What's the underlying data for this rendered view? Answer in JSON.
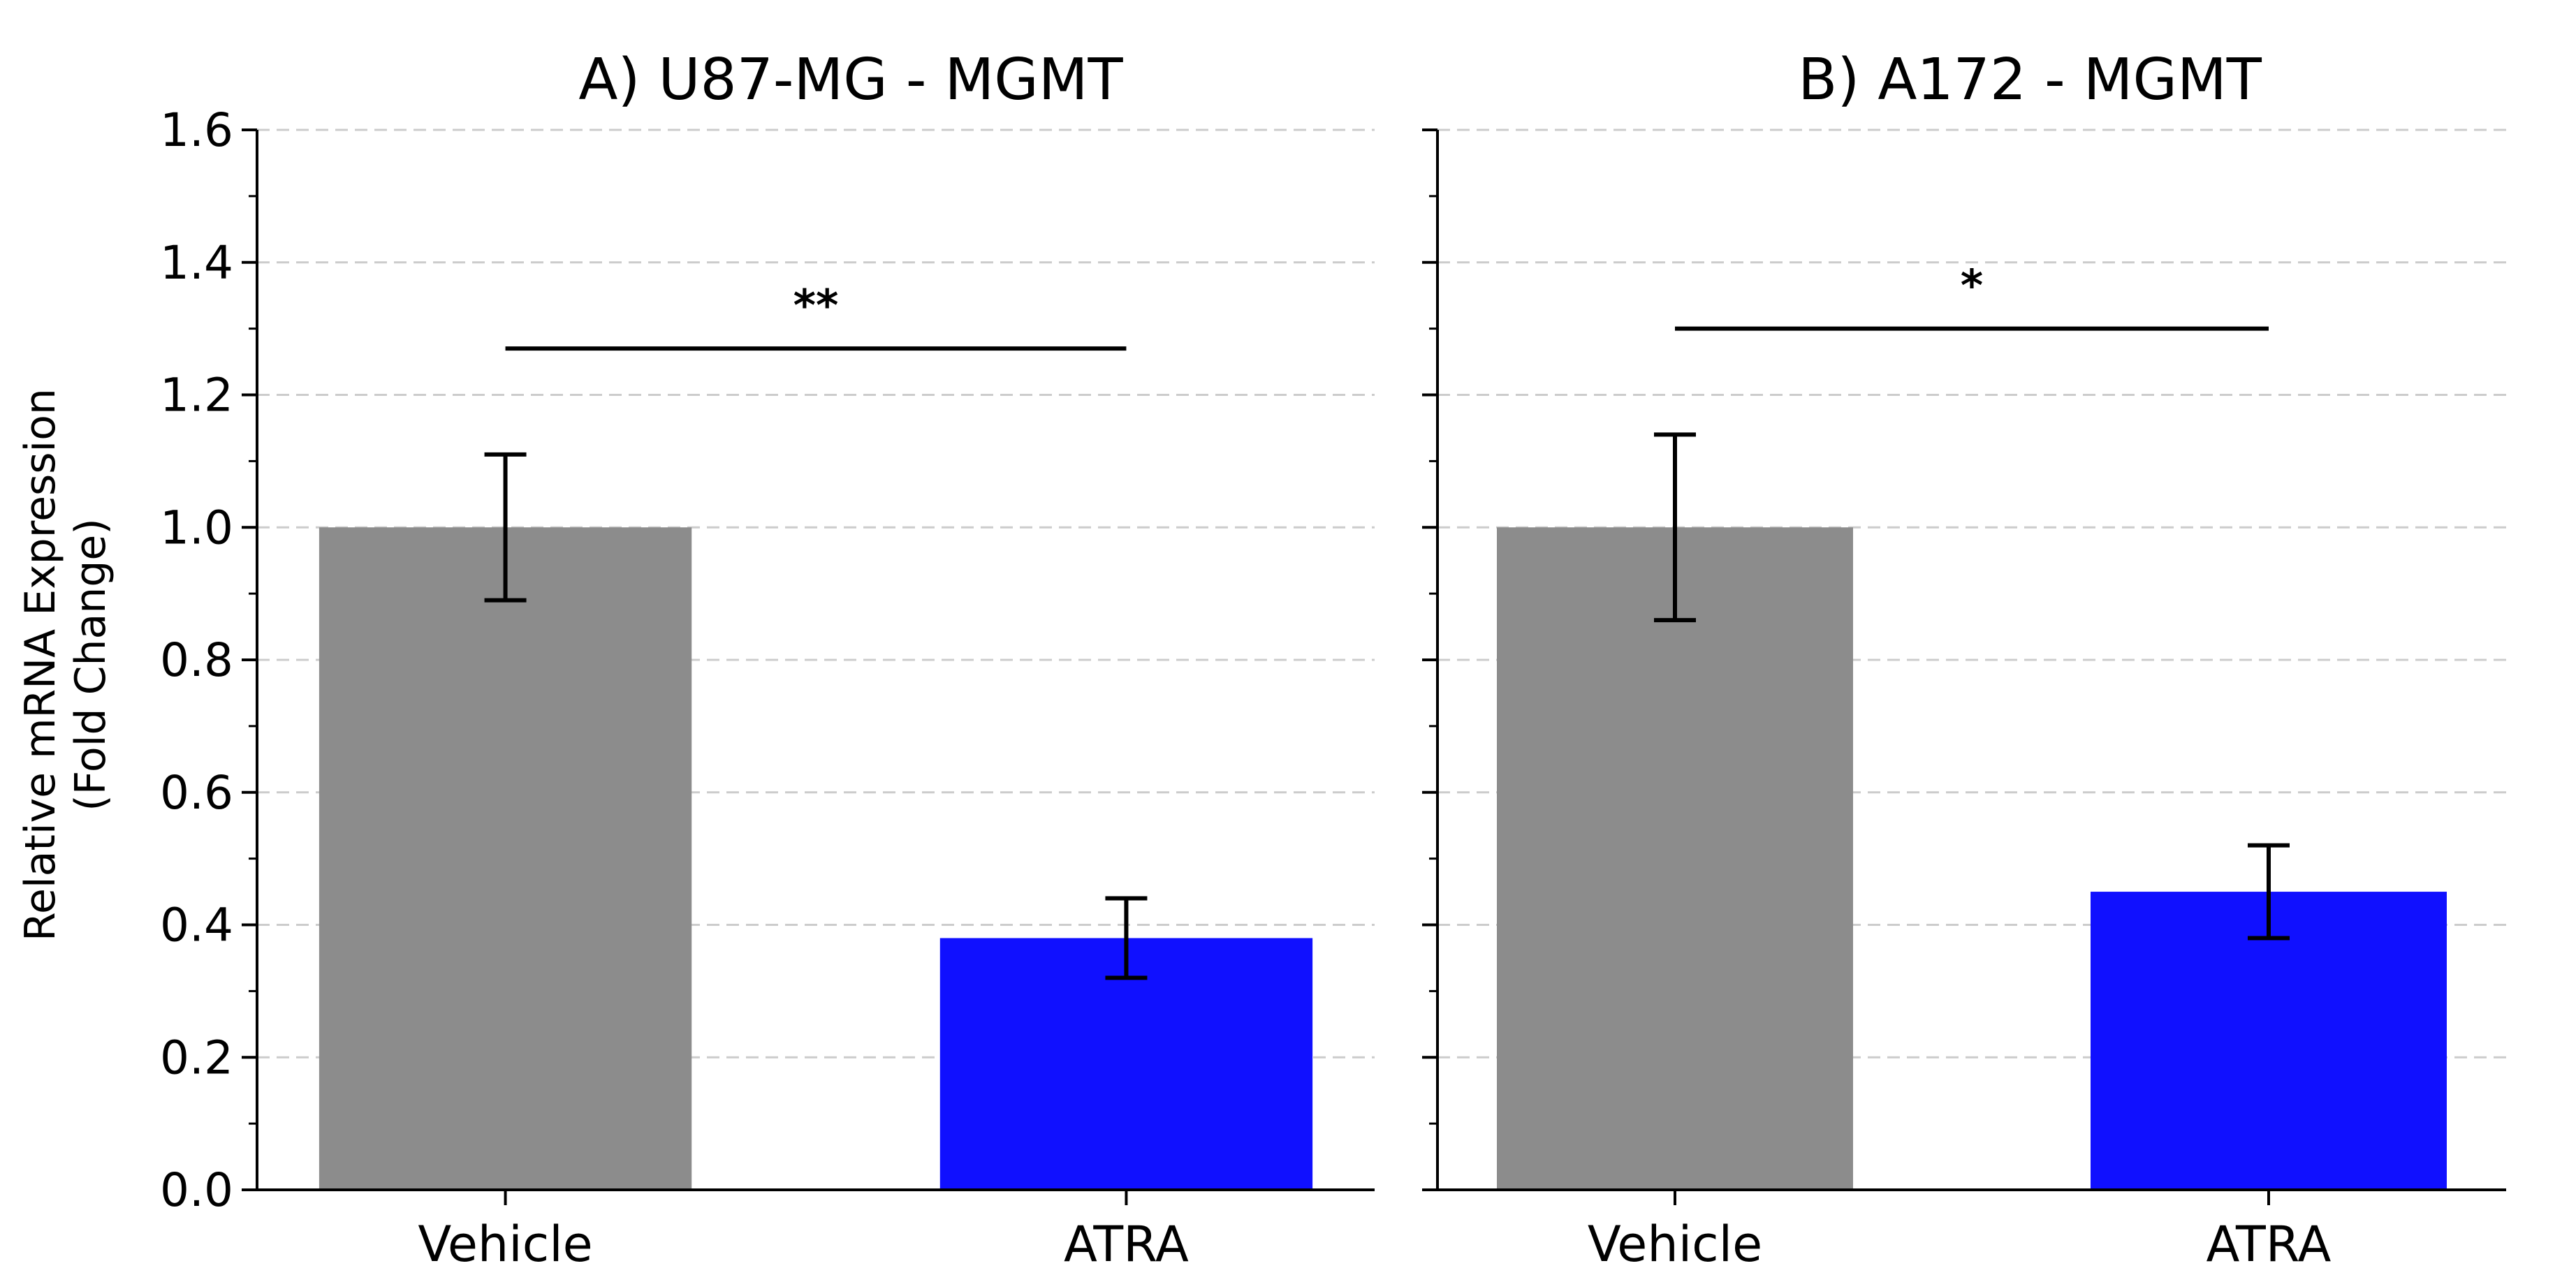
{
  "chart_data": [
    {
      "type": "bar",
      "title": "A) U87-MG - MGMT",
      "categories": [
        "Vehicle",
        "ATRA"
      ],
      "values": [
        1.0,
        0.38
      ],
      "errors": [
        0.11,
        0.06
      ],
      "colors": [
        "#8c8c8c",
        "#1010ff"
      ],
      "ylabel_lines": [
        "Relative mRNA Expression",
        "(Fold Change)"
      ],
      "ylim": [
        0,
        1.6
      ],
      "yticks": [
        0.0,
        0.2,
        0.4,
        0.6,
        0.8,
        1.0,
        1.2,
        1.4,
        1.6
      ],
      "ytick_labels": [
        "0.0",
        "0.2",
        "0.4",
        "0.6",
        "0.8",
        "1.0",
        "1.2",
        "1.4",
        "1.6"
      ],
      "grid": "horizontal-dashed",
      "significance": {
        "label": "**",
        "y": 1.27
      }
    },
    {
      "type": "bar",
      "title": "B) A172 - MGMT",
      "categories": [
        "Vehicle",
        "ATRA"
      ],
      "values": [
        1.0,
        0.45
      ],
      "errors": [
        0.14,
        0.07
      ],
      "colors": [
        "#8c8c8c",
        "#1010ff"
      ],
      "ylim": [
        0,
        1.6
      ],
      "yticks": [
        0.0,
        0.2,
        0.4,
        0.6,
        0.8,
        1.0,
        1.2,
        1.4,
        1.6
      ],
      "grid": "horizontal-dashed",
      "significance": {
        "label": "*",
        "y": 1.3
      }
    }
  ]
}
